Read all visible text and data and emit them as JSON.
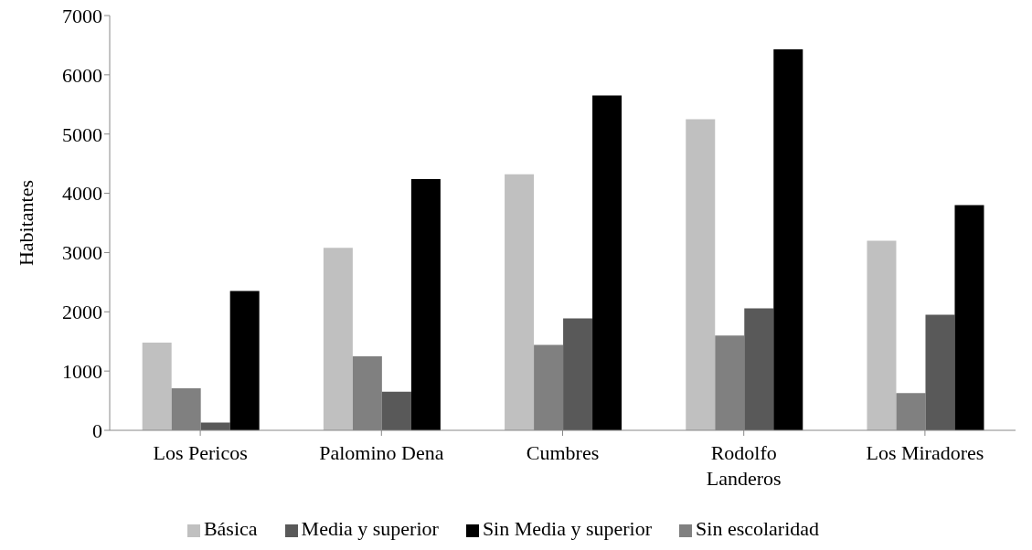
{
  "chart_data": {
    "type": "bar",
    "ylabel": "Habitantes",
    "categories": [
      "Los Pericos",
      "Palomino Dena",
      "Cumbres",
      "Rodolfo Landeros",
      "Los Miradores"
    ],
    "series": [
      {
        "name": "Básica",
        "color": "#c0c0c0",
        "values": [
          1480,
          3080,
          4320,
          5250,
          3200
        ]
      },
      {
        "name": "Sin escolaridad",
        "color": "#808080",
        "values": [
          710,
          1250,
          1440,
          1600,
          630
        ]
      },
      {
        "name": "Media y superior",
        "color": "#595959",
        "values": [
          130,
          650,
          1890,
          2060,
          1950
        ]
      },
      {
        "name": "Sin Media y superior",
        "color": "#000000",
        "values": [
          2350,
          4240,
          5650,
          6430,
          3800
        ]
      }
    ],
    "ylim": [
      0,
      7000
    ],
    "yticks": [
      0,
      1000,
      2000,
      3000,
      4000,
      5000,
      6000,
      7000
    ],
    "grid": false,
    "legend": "bottom"
  }
}
